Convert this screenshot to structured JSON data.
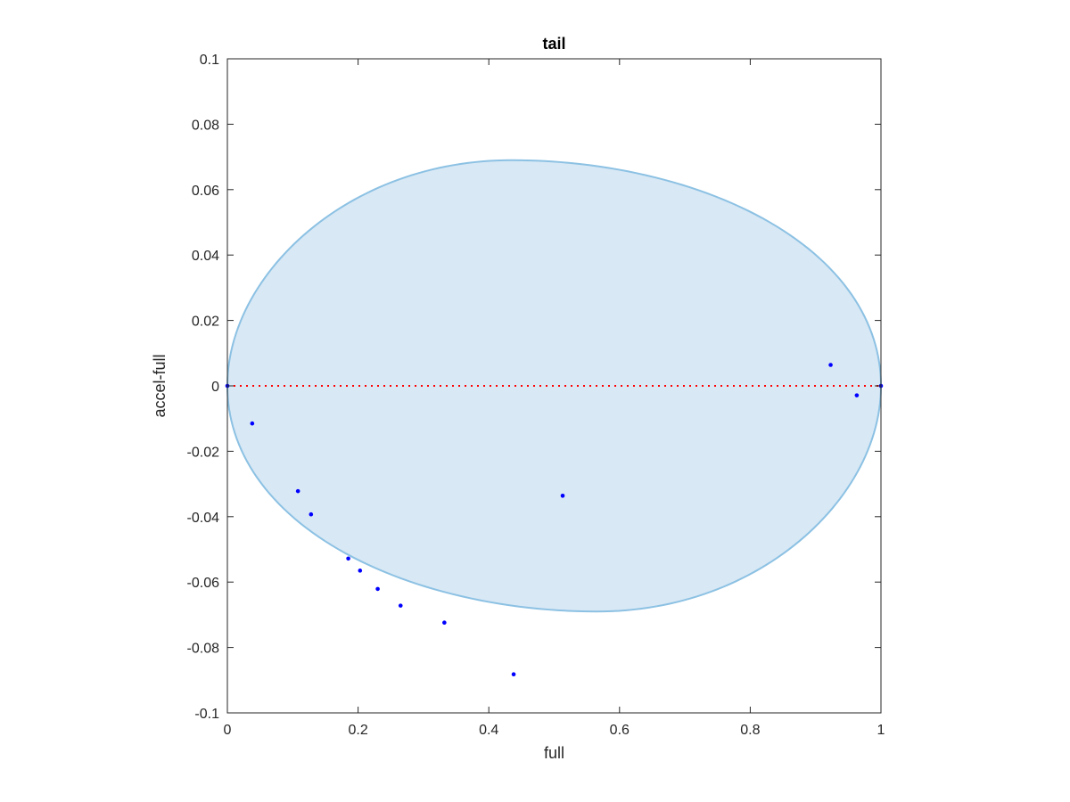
{
  "chart_data": {
    "type": "scatter",
    "title": "tail",
    "xlabel": "full",
    "ylabel": "accel-full",
    "xlim": [
      0,
      1
    ],
    "ylim": [
      -0.1,
      0.1
    ],
    "xticks": [
      0,
      0.2,
      0.4,
      0.6,
      0.8,
      1
    ],
    "xtick_labels": [
      "0",
      "0.2",
      "0.4",
      "0.6",
      "0.8",
      "1"
    ],
    "yticks": [
      -0.1,
      -0.08,
      -0.06,
      -0.04,
      -0.02,
      0,
      0.02,
      0.04,
      0.06,
      0.08,
      0.1
    ],
    "ytick_labels": [
      "-0.1",
      "-0.08",
      "-0.06",
      "-0.04",
      "-0.02",
      "0",
      "0.02",
      "0.04",
      "0.06",
      "0.08",
      "0.1"
    ],
    "grid": false,
    "points": {
      "color": "#0000ff",
      "x": [
        0.0,
        0.038,
        0.108,
        0.128,
        0.185,
        0.203,
        0.23,
        0.265,
        0.332,
        0.438,
        0.513,
        0.923,
        0.963,
        1.0
      ],
      "y": [
        0.0,
        -0.0115,
        -0.0322,
        -0.0393,
        -0.0528,
        -0.0565,
        -0.0621,
        -0.0672,
        -0.0724,
        -0.0882,
        -0.0336,
        0.0064,
        -0.0029,
        0.0
      ]
    },
    "reference_line": {
      "y": 0,
      "style": "dotted",
      "color": "#ff0000"
    },
    "region": {
      "shape": "ellipse",
      "fill_color": "#d8e8f5",
      "edge_color": "#8cc1e3",
      "cx": 0.5,
      "cy": 0.0,
      "rx": 0.5,
      "ry": 0.069,
      "peak_x": 0.435,
      "trough_x": 0.565
    }
  }
}
